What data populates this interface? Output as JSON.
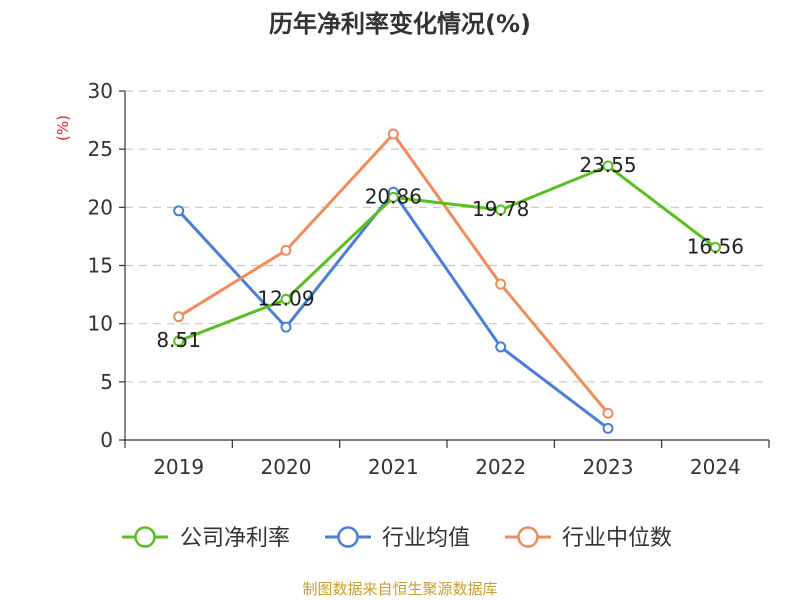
{
  "chart_data": {
    "type": "line",
    "title": "历年净利率变化情况(%)",
    "ylabel": "(%)",
    "xlabel": "",
    "categories": [
      "2019",
      "2020",
      "2021",
      "2022",
      "2023",
      "2024"
    ],
    "ylim": [
      0,
      30
    ],
    "yticks": [
      0,
      5,
      10,
      15,
      20,
      25,
      30
    ],
    "grid": true,
    "legend_position": "bottom",
    "series": [
      {
        "name": "公司净利率",
        "color": "#5ac020",
        "values": [
          8.51,
          12.09,
          20.86,
          19.78,
          23.55,
          16.56
        ],
        "labels": [
          "8.51",
          "12.09",
          "20.86",
          "19.78",
          "23.55",
          "16.56"
        ]
      },
      {
        "name": "行业均值",
        "color": "#4a7fd8",
        "values": [
          19.7,
          9.7,
          21.3,
          8.0,
          1.0,
          null
        ],
        "labels": []
      },
      {
        "name": "行业中位数",
        "color": "#f28c5a",
        "values": [
          10.6,
          16.3,
          26.3,
          13.4,
          2.3,
          null
        ],
        "labels": []
      }
    ]
  },
  "source_note": "制图数据来自恒生聚源数据库"
}
